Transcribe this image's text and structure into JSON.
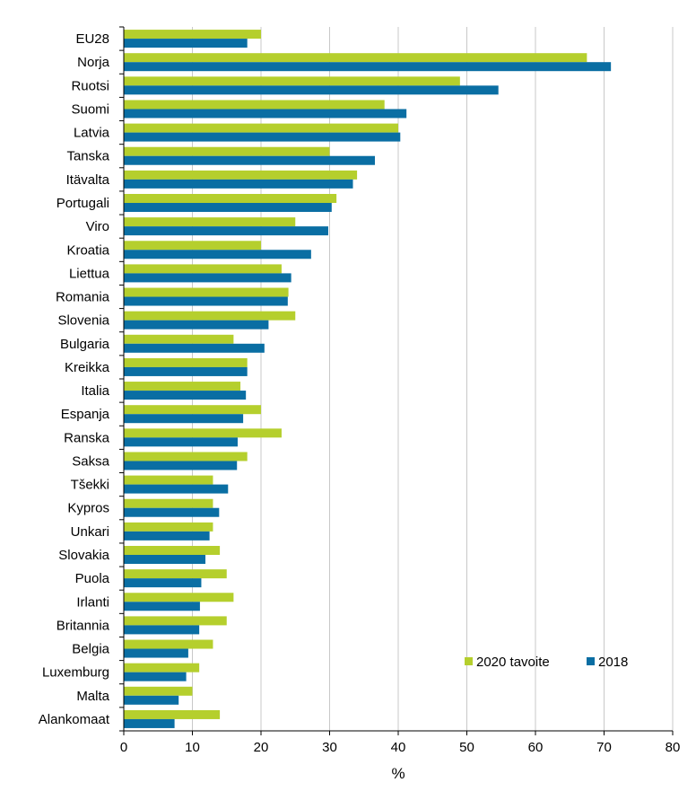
{
  "chart_data": {
    "type": "bar",
    "orientation": "horizontal",
    "categories": [
      "EU28",
      "Norja",
      "Ruotsi",
      "Suomi",
      "Latvia",
      "Tanska",
      "Itävalta",
      "Portugali",
      "Viro",
      "Kroatia",
      "Liettua",
      "Romania",
      "Slovenia",
      "Bulgaria",
      "Kreikka",
      "Italia",
      "Espanja",
      "Ranska",
      "Saksa",
      "Tšekki",
      "Kypros",
      "Unkari",
      "Slovakia",
      "Puola",
      "Irlanti",
      "Britannia",
      "Belgia",
      "Luxemburg",
      "Malta",
      "Alankomaat"
    ],
    "series": [
      {
        "name": "2020 tavoite",
        "color": "#b5cf2d",
        "values": [
          20,
          67.5,
          49,
          38,
          40,
          30,
          34,
          31,
          25,
          20,
          23,
          24,
          25,
          16,
          18,
          17,
          20,
          23,
          18,
          13,
          13,
          13,
          14,
          15,
          16,
          15,
          13,
          11,
          10,
          14
        ]
      },
      {
        "name": "2018",
        "color": "#0a6ea3",
        "values": [
          18,
          71,
          54.6,
          41.2,
          40.3,
          36.6,
          33.4,
          30.3,
          29.8,
          27.3,
          24.4,
          23.9,
          21.1,
          20.5,
          18,
          17.8,
          17.4,
          16.6,
          16.5,
          15.2,
          13.9,
          12.5,
          11.9,
          11.3,
          11.1,
          11,
          9.4,
          9.1,
          8,
          7.4
        ]
      }
    ],
    "xlabel": "%",
    "ylabel": "",
    "xlim": [
      0,
      80
    ],
    "xticks": [
      0,
      10,
      20,
      30,
      40,
      50,
      60,
      70,
      80
    ],
    "grid": "vertical",
    "legend_position": "bottom-right"
  }
}
